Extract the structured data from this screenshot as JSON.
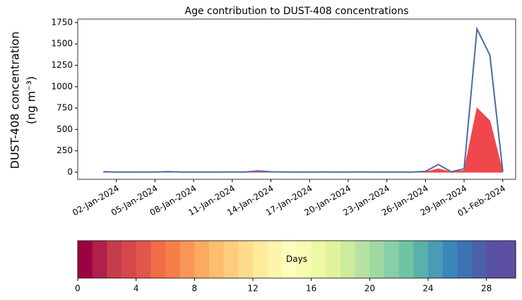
{
  "chart_data": {
    "type": "line",
    "title": "Age contribution to DUST-408 concentrations",
    "ylabel": [
      "DUST-408 concentration",
      "(ng m⁻³)"
    ],
    "x": [
      "2024-01-01",
      "2024-01-02",
      "2024-01-03",
      "2024-01-04",
      "2024-01-05",
      "2024-01-06",
      "2024-01-07",
      "2024-01-08",
      "2024-01-09",
      "2024-01-10",
      "2024-01-11",
      "2024-01-12",
      "2024-01-13",
      "2024-01-14",
      "2024-01-15",
      "2024-01-16",
      "2024-01-17",
      "2024-01-18",
      "2024-01-19",
      "2024-01-20",
      "2024-01-21",
      "2024-01-22",
      "2024-01-23",
      "2024-01-24",
      "2024-01-25",
      "2024-01-26",
      "2024-01-27",
      "2024-01-28",
      "2024-01-29",
      "2024-01-30",
      "2024-01-31",
      "2024-02-01"
    ],
    "series": [
      {
        "color": "#4a6aa8",
        "values": [
          6,
          2,
          2,
          2,
          3,
          6,
          2,
          2,
          2,
          2,
          3,
          2,
          15,
          5,
          3,
          2,
          2,
          3,
          2,
          2,
          3,
          2,
          2,
          2,
          2,
          10,
          90,
          5,
          40,
          1675,
          1370,
          10
        ]
      },
      {
        "color": "#f0474c",
        "values": [
          1,
          0,
          0,
          0,
          0,
          1,
          0,
          0,
          0,
          0,
          0,
          0,
          3,
          1,
          0,
          0,
          0,
          0,
          0,
          0,
          0,
          0,
          0,
          0,
          0,
          3,
          40,
          2,
          20,
          750,
          600,
          4
        ]
      }
    ],
    "xlim": [
      "2023-12-30",
      "2024-02-02"
    ],
    "xticks": [
      {
        "value": "2024-01-02",
        "label": "02-Jan-2024"
      },
      {
        "value": "2024-01-05",
        "label": "05-Jan-2024"
      },
      {
        "value": "2024-01-08",
        "label": "08-Jan-2024"
      },
      {
        "value": "2024-01-11",
        "label": "11-Jan-2024"
      },
      {
        "value": "2024-01-14",
        "label": "14-Jan-2024"
      },
      {
        "value": "2024-01-17",
        "label": "17-Jan-2024"
      },
      {
        "value": "2024-01-20",
        "label": "20-Jan-2024"
      },
      {
        "value": "2024-01-23",
        "label": "23-Jan-2024"
      },
      {
        "value": "2024-01-26",
        "label": "26-Jan-2024"
      },
      {
        "value": "2024-01-29",
        "label": "29-Jan-2024"
      },
      {
        "value": "2024-02-01",
        "label": "01-Feb-2024"
      }
    ],
    "ylim": [
      -83,
      1791
    ],
    "yticks": [
      0,
      250,
      500,
      750,
      1000,
      1250,
      1500,
      1750
    ],
    "colorbar": {
      "label": "Days",
      "lim": [
        0,
        30
      ],
      "ticks": [
        0,
        4,
        8,
        12,
        16,
        20,
        24,
        28
      ],
      "colors": [
        "#9e0142",
        "#b0204a",
        "#c43c4e",
        "#d6474b",
        "#e2574c",
        "#f06d45",
        "#f67e4b",
        "#f99656",
        "#fcaa60",
        "#fdbd6f",
        "#fdcd7d",
        "#fedc8b",
        "#feea9b",
        "#fff4ab",
        "#fffdbd",
        "#f7fbb2",
        "#edf8a3",
        "#e0f29b",
        "#cdeb9c",
        "#b7e1a1",
        "#a0d8a4",
        "#88cfa5",
        "#70c4a6",
        "#5ab1ab",
        "#4a9bb4",
        "#3a86bb",
        "#3d72b4",
        "#4a60ab",
        "#5750a4",
        "#5e4fa2"
      ]
    }
  }
}
